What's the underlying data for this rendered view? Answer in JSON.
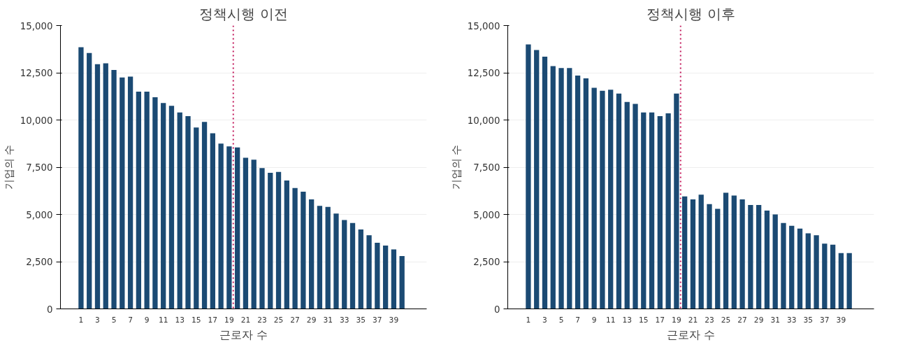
{
  "chart_data": [
    {
      "type": "bar",
      "title": "정책시행 이전",
      "xlabel": "근로자 수",
      "ylabel": "기업의 수",
      "x": [
        1,
        2,
        3,
        4,
        5,
        6,
        7,
        8,
        9,
        10,
        11,
        12,
        13,
        14,
        15,
        16,
        17,
        18,
        19,
        20,
        21,
        22,
        23,
        24,
        25,
        26,
        27,
        28,
        29,
        30,
        31,
        32,
        33,
        34,
        35,
        36,
        37,
        38,
        39,
        40
      ],
      "values": [
        13850,
        13550,
        12950,
        13000,
        12650,
        12250,
        12300,
        11500,
        11500,
        11200,
        10900,
        10750,
        10400,
        10200,
        9600,
        9900,
        9300,
        8750,
        8600,
        8550,
        8000,
        7900,
        7450,
        7200,
        7250,
        6800,
        6400,
        6200,
        5800,
        5450,
        5400,
        5050,
        4700,
        4550,
        4200,
        3900,
        3500,
        3350,
        3150,
        2800
      ],
      "color": "#1b4a73",
      "xlim": [
        -1.5,
        43
      ],
      "xticks": [
        1,
        3,
        5,
        7,
        9,
        11,
        13,
        15,
        17,
        19,
        21,
        23,
        25,
        27,
        29,
        31,
        33,
        35,
        37,
        39
      ],
      "ylim": [
        0,
        15000
      ],
      "yticks": [
        0,
        {
          "value": 2500,
          "label": "2,500"
        },
        {
          "value": 5000,
          "label": "5,000"
        },
        {
          "value": 7500,
          "label": "7,500"
        },
        {
          "value": 10000,
          "label": "10,000"
        },
        {
          "value": 12500,
          "label": "12,500"
        },
        {
          "value": 15000,
          "label": "15,000"
        }
      ],
      "grid": "y",
      "ref_lines": [
        {
          "axis": "x",
          "value": 19.5,
          "color": "#c2185b",
          "line_style": "dotted"
        }
      ]
    },
    {
      "type": "bar",
      "title": "정책시행 이후",
      "xlabel": "근로자 수",
      "ylabel": "기업의 수",
      "x": [
        1,
        2,
        3,
        4,
        5,
        6,
        7,
        8,
        9,
        10,
        11,
        12,
        13,
        14,
        15,
        16,
        17,
        18,
        19,
        20,
        21,
        22,
        23,
        24,
        25,
        26,
        27,
        28,
        29,
        30,
        31,
        32,
        33,
        34,
        35,
        36,
        37,
        38,
        39,
        40
      ],
      "values": [
        14000,
        13700,
        13350,
        12850,
        12750,
        12750,
        12350,
        12200,
        11700,
        11550,
        11600,
        11400,
        10950,
        10850,
        10400,
        10400,
        10200,
        10350,
        11400,
        5950,
        5800,
        6050,
        5550,
        5300,
        6150,
        6000,
        5800,
        5500,
        5500,
        5200,
        5000,
        4550,
        4400,
        4250,
        4000,
        3900,
        3450,
        3400,
        2950,
        2950
      ],
      "color": "#1b4a73",
      "xlim": [
        -1.5,
        43
      ],
      "xticks": [
        1,
        3,
        5,
        7,
        9,
        11,
        13,
        15,
        17,
        19,
        21,
        23,
        25,
        27,
        29,
        31,
        33,
        35,
        37,
        39
      ],
      "ylim": [
        0,
        15000
      ],
      "yticks": [
        0,
        {
          "value": 2500,
          "label": "2,500"
        },
        {
          "value": 5000,
          "label": "5,000"
        },
        {
          "value": 7500,
          "label": "7,500"
        },
        {
          "value": 10000,
          "label": "10,000"
        },
        {
          "value": 12500,
          "label": "12,500"
        },
        {
          "value": 15000,
          "label": "15,000"
        }
      ],
      "grid": "y",
      "ref_lines": [
        {
          "axis": "x",
          "value": 19.5,
          "color": "#c2185b",
          "line_style": "dotted"
        }
      ]
    }
  ]
}
